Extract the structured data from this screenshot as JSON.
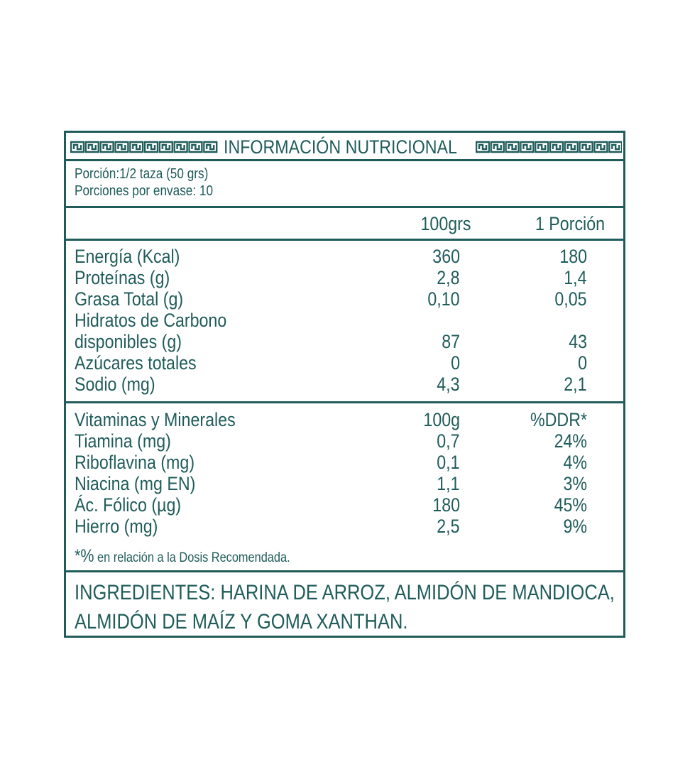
{
  "title": "INFORMACIÓN NUTRICIONAL",
  "serving": {
    "portion": "Porción:1/2 taza (50 grs)",
    "per_package": "Porciones por envase: 10"
  },
  "columns": {
    "col1": "100grs",
    "col2": "1 Porción"
  },
  "nutrients": [
    {
      "label": "Energía (Kcal)",
      "v1": "360",
      "v2": "180"
    },
    {
      "label": "Proteínas (g)",
      "v1": "2,8",
      "v2": "1,4"
    },
    {
      "label": "Grasa Total (g)",
      "v1": "0,10",
      "v2": "0,05"
    },
    {
      "label": "Hidratos de Carbono",
      "v1": "",
      "v2": ""
    },
    {
      "label": "disponibles (g)",
      "v1": "87",
      "v2": "43"
    },
    {
      "label": "Azúcares totales",
      "v1": "0",
      "v2": "0"
    },
    {
      "label": "Sodio (mg)",
      "v1": "4,3",
      "v2": "2,1"
    }
  ],
  "vitamins": [
    {
      "label": "Vitaminas y Minerales",
      "v1": "100g",
      "v2": "%DDR*"
    },
    {
      "label": "Tiamina (mg)",
      "v1": "0,7",
      "v2": "24%"
    },
    {
      "label": "Riboflavina (mg)",
      "v1": "0,1",
      "v2": "4%"
    },
    {
      "label": "Niacina (mg EN)",
      "v1": "1,1",
      "v2": "3%"
    },
    {
      "label": "Ác. Fólico (µg)",
      "v1": "180",
      "v2": "45%"
    },
    {
      "label": "Hierro (mg)",
      "v1": "2,5",
      "v2": "9%"
    }
  ],
  "footnote": {
    "mark": "*%",
    "text": " en relación a la Dosis Recomendada."
  },
  "ingredients": {
    "line1": "INGREDIENTES: HARINA DE ARROZ, ALMIDÓN DE MANDIOCA,",
    "line2": "ALMIDÓN DE MAÍZ Y GOMA XANTHAN."
  },
  "colors": {
    "primary": "#1f5c5a",
    "background": "#ffffff"
  }
}
